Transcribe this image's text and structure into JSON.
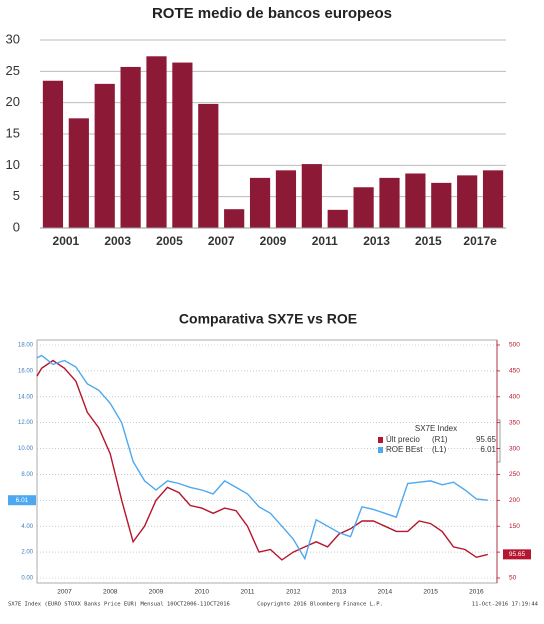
{
  "chart_data": [
    {
      "type": "bar",
      "title": "ROTE medio de bancos europeos",
      "categories": [
        "2001",
        null,
        "2003",
        null,
        "2005",
        null,
        "2007",
        null,
        "2009",
        null,
        "2011",
        null,
        "2013",
        null,
        "2015",
        null,
        "2017e",
        null
      ],
      "values": [
        23.5,
        17.5,
        23,
        25.7,
        27.4,
        26.4,
        19.8,
        3,
        8,
        9.2,
        10.2,
        2.9,
        6.5,
        8,
        8.7,
        7.2,
        8.4,
        9.2
      ],
      "color": "#8c1a36",
      "ylim": [
        0,
        30
      ],
      "yticks": [
        0,
        5,
        10,
        15,
        20,
        25,
        30
      ],
      "grid": true
    },
    {
      "type": "line",
      "title": "Comparativa SX7E vs ROE",
      "x": [
        2006.9,
        2007,
        2007.25,
        2007.5,
        2007.75,
        2008,
        2008.25,
        2008.5,
        2008.75,
        2009,
        2009.25,
        2009.5,
        2009.75,
        2010,
        2010.25,
        2010.5,
        2010.75,
        2011,
        2011.25,
        2011.5,
        2011.75,
        2012,
        2012.25,
        2012.5,
        2012.75,
        2013,
        2013.25,
        2013.5,
        2013.75,
        2014,
        2014.25,
        2014.5,
        2014.75,
        2015,
        2015.25,
        2015.5,
        2015.75,
        2016,
        2016.25,
        2016.5,
        2016.75
      ],
      "xlim": [
        2006.9,
        2016.95
      ],
      "xticks": [
        {
          "value": 2007.5,
          "label": "2007"
        },
        {
          "value": 2008.5,
          "label": "2008"
        },
        {
          "value": 2009.5,
          "label": "2009"
        },
        {
          "value": 2010.5,
          "label": "2010"
        },
        {
          "value": 2011.5,
          "label": "2011"
        },
        {
          "value": 2012.5,
          "label": "2012"
        },
        {
          "value": 2013.5,
          "label": "2013"
        },
        {
          "value": 2014.5,
          "label": "2014"
        },
        {
          "value": 2015.5,
          "label": "2015"
        },
        {
          "value": 2016.5,
          "label": "2016"
        }
      ],
      "ylim": [
        0,
        18
      ],
      "yticks": [
        {
          "value": 0,
          "label": "0.00"
        },
        {
          "value": 2,
          "label": "2.00"
        },
        {
          "value": 4,
          "label": "4.00"
        },
        {
          "value": 6,
          "label": "6.00"
        },
        {
          "value": 8,
          "label": "8.00"
        },
        {
          "value": 10,
          "label": "10.00"
        },
        {
          "value": 12,
          "label": "12.00"
        },
        {
          "value": 14,
          "label": "14.00"
        },
        {
          "value": 16,
          "label": "16.00"
        },
        {
          "value": 18,
          "label": "18.00"
        }
      ],
      "y2lim": [
        50,
        500
      ],
      "y2ticks": [
        50,
        100,
        150,
        200,
        250,
        300,
        350,
        400,
        450,
        500
      ],
      "grid": true,
      "legend_title": "SX7E Index",
      "series": [
        {
          "name": "Últ precio",
          "tag": "(R1)",
          "color": "#b5152e",
          "axis": "y2",
          "values": [
            440,
            455,
            470,
            455,
            430,
            370,
            340,
            290,
            200,
            120,
            150,
            200,
            225,
            215,
            190,
            185,
            175,
            185,
            180,
            150,
            100,
            105,
            85,
            100,
            110,
            120,
            110,
            135,
            145,
            160,
            160,
            150,
            140,
            140,
            160,
            155,
            140,
            110,
            105,
            90,
            95.65
          ]
        },
        {
          "name": "ROE BEst",
          "tag": "(L1)",
          "color": "#4ea8ef",
          "values": [
            17,
            17.2,
            16.5,
            16.8,
            16.3,
            15,
            14.5,
            13.5,
            12,
            9,
            7.5,
            6.8,
            7.5,
            7.3,
            7,
            6.8,
            6.5,
            7.5,
            7,
            6.5,
            5.5,
            5,
            4,
            3,
            1.5,
            4.5,
            4,
            3.5,
            3.2,
            5.5,
            5.3,
            5,
            4.7,
            7.3,
            7.4,
            7.5,
            7.2,
            7.4,
            6.8,
            6.1,
            6.01
          ]
        }
      ],
      "footer": [
        "SX7E Index (EURO STOXX Banks Price EUR)  Mensual 10OCT2006-11OCT2016",
        "Copyright© 2016 Bloomberg Finance L.P.",
        "11-Oct-2016 17:19:44"
      ]
    }
  ]
}
